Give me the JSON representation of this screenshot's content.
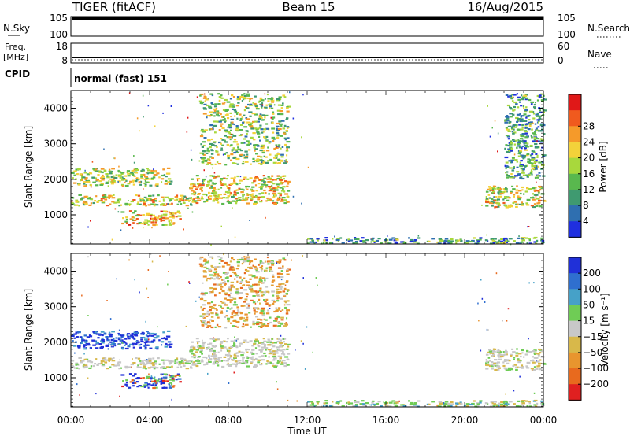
{
  "header": {
    "left": "TIGER (fitACF)",
    "center": "Beam 15",
    "right": "16/Aug/2015"
  },
  "panels": {
    "nsky": {
      "left_label": "N.Sky",
      "right_label": "N.Search",
      "left_ticks": [
        "10^5",
        "10^0"
      ],
      "right_ticks": [
        "10^5",
        "10^0"
      ]
    },
    "freq": {
      "left_label_1": "Freq.",
      "left_label_2": "[MHz]",
      "right_label": "Nave",
      "left_ticks": [
        "18",
        "8"
      ],
      "right_ticks": [
        "60",
        "0"
      ]
    },
    "cpid": {
      "label": "CPID",
      "text": "normal (fast) 151"
    }
  },
  "colors": {
    "power": [
      "#1f2fe0",
      "#2f6fb0",
      "#3f9a70",
      "#59b84e",
      "#a8d83c",
      "#f3d23a",
      "#f59a2a",
      "#f05a1e",
      "#e01818"
    ],
    "velocity": [
      "#2030d8",
      "#2f6fcf",
      "#46a1c8",
      "#6fcc55",
      "#c8c8c8",
      "#d8b84a",
      "#e8952e",
      "#e86a1e",
      "#e02020"
    ]
  },
  "chart_data": [
    {
      "type": "heatmap",
      "name": "power",
      "ylabel": "Slant Range [km]",
      "xlabel": "",
      "ylim": [
        180,
        4500
      ],
      "x_ticks": [
        "00:00",
        "04:00",
        "08:00",
        "12:00",
        "16:00",
        "20:00",
        "00:00"
      ],
      "y_ticks": [
        1000,
        2000,
        3000,
        4000
      ],
      "colorbar": {
        "label": "Power [dB]",
        "ticks": [
          "4",
          "8",
          "12",
          "16",
          "20",
          "24",
          "28"
        ]
      },
      "features": [
        {
          "t0": 0.0,
          "t1": 6.1,
          "r0": 1250,
          "r1": 1550,
          "level": 0.55
        },
        {
          "t0": 0.0,
          "t1": 5.0,
          "r0": 1800,
          "r1": 2300,
          "level": 0.5
        },
        {
          "t0": 2.5,
          "t1": 5.5,
          "r0": 700,
          "r1": 1100,
          "level": 0.65
        },
        {
          "t0": 6.0,
          "t1": 11.0,
          "r0": 1300,
          "r1": 2100,
          "level": 0.6
        },
        {
          "t0": 6.5,
          "t1": 11.0,
          "r0": 2400,
          "r1": 4400,
          "level": 0.45
        },
        {
          "t0": 12.0,
          "t1": 24.0,
          "r0": 180,
          "r1": 350,
          "level": 0.3
        },
        {
          "t0": 21.0,
          "t1": 24.0,
          "r0": 1200,
          "r1": 1800,
          "level": 0.55
        },
        {
          "t0": 22.0,
          "t1": 24.0,
          "r0": 2000,
          "r1": 4400,
          "level": 0.3
        }
      ]
    },
    {
      "type": "heatmap",
      "name": "velocity",
      "ylabel": "Slant Range [km]",
      "xlabel": "Time UT",
      "ylim": [
        180,
        4500
      ],
      "x_ticks": [
        "00:00",
        "04:00",
        "08:00",
        "12:00",
        "16:00",
        "20:00",
        "00:00"
      ],
      "y_ticks": [
        1000,
        2000,
        3000,
        4000
      ],
      "colorbar": {
        "label": "Velocity [m s⁻¹]",
        "ticks": [
          "200",
          "100",
          "50",
          "15",
          "−15",
          "−50",
          "−100",
          "−200"
        ]
      },
      "features": [
        {
          "t0": 0.0,
          "t1": 6.1,
          "r0": 1250,
          "r1": 1550,
          "vel": "grey"
        },
        {
          "t0": 0.0,
          "t1": 5.0,
          "r0": 1800,
          "r1": 2300,
          "vel": "blue"
        },
        {
          "t0": 2.5,
          "t1": 5.5,
          "r0": 700,
          "r1": 1100,
          "vel": "mixed"
        },
        {
          "t0": 6.0,
          "t1": 11.0,
          "r0": 1300,
          "r1": 2100,
          "vel": "grey"
        },
        {
          "t0": 6.5,
          "t1": 11.0,
          "r0": 2400,
          "r1": 4400,
          "vel": "warm"
        },
        {
          "t0": 12.0,
          "t1": 24.0,
          "r0": 180,
          "r1": 350,
          "vel": "green"
        },
        {
          "t0": 21.0,
          "t1": 24.0,
          "r0": 1200,
          "r1": 1800,
          "vel": "grey"
        }
      ]
    }
  ]
}
